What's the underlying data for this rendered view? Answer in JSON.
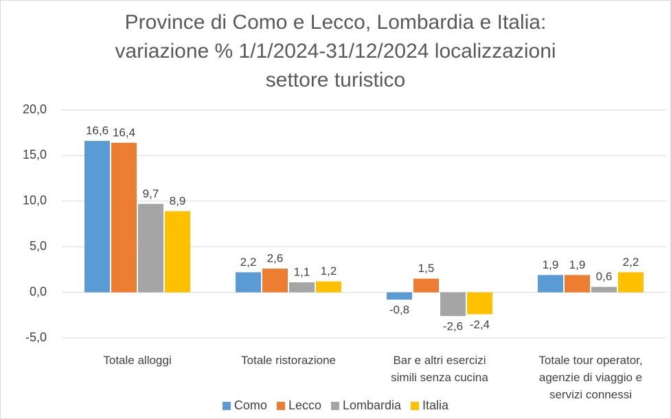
{
  "chart_data": {
    "type": "bar",
    "title": "Province di Como e Lecco, Lombardia e Italia:\nvariazione % 1/1/2024-31/12/2024  localizzazioni\nsettore turistico",
    "categories": [
      "Totale alloggi",
      "Totale ristorazione",
      "Bar e altri esercizi\nsimili senza cucina",
      "Totale tour operator,\nagenzie di viaggio e\nservizi connessi"
    ],
    "series": [
      {
        "name": "Como",
        "color": "#5b9bd5",
        "values": [
          16.6,
          2.2,
          -0.8,
          1.9
        ],
        "value_labels": [
          "16,6",
          "2,2",
          "-0,8",
          "1,9"
        ]
      },
      {
        "name": "Lecco",
        "color": "#ed7d31",
        "values": [
          16.4,
          2.6,
          1.5,
          1.9
        ],
        "value_labels": [
          "16,4",
          "2,6",
          "1,5",
          "1,9"
        ]
      },
      {
        "name": "Lombardia",
        "color": "#a5a5a5",
        "values": [
          9.7,
          1.1,
          -2.6,
          0.6
        ],
        "value_labels": [
          "9,7",
          "1,1",
          "-2,6",
          "0,6"
        ]
      },
      {
        "name": "Italia",
        "color": "#ffc000",
        "values": [
          8.9,
          1.2,
          -2.4,
          2.2
        ],
        "value_labels": [
          "8,9",
          "1,2",
          "-2,4",
          "2,2"
        ]
      }
    ],
    "ylim": [
      -5,
      20
    ],
    "yticks": [
      {
        "value": -5,
        "label": "-5,0"
      },
      {
        "value": 0,
        "label": "0,0"
      },
      {
        "value": 5,
        "label": "5,0"
      },
      {
        "value": 10,
        "label": "10,0"
      },
      {
        "value": 15,
        "label": "15,0"
      },
      {
        "value": 20,
        "label": "20,0"
      }
    ],
    "grid": true,
    "legend": "bottom"
  }
}
